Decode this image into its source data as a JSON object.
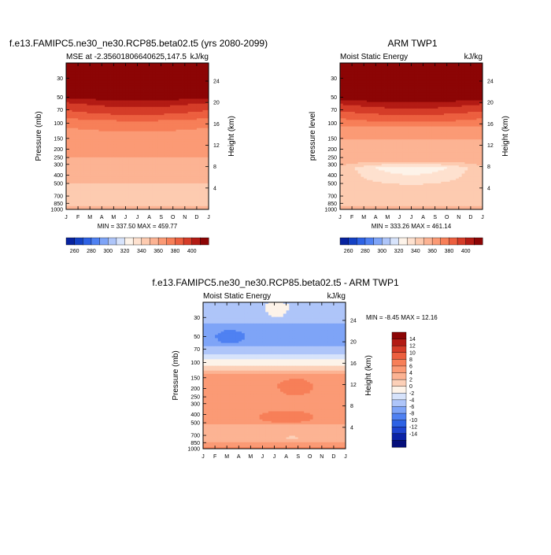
{
  "page": {
    "title_left": "f.e13.FAMIPC5.ne30_ne30.RCP85.beta02.t5 (yrs 2080-2099)",
    "title_right": "ARM TWP1",
    "title_diff": "f.e13.FAMIPC5.ne30_ne30.RCP85.beta02.t5 - ARM TWP1"
  },
  "chart_data": [
    {
      "id": "model",
      "type": "heatmap",
      "title": "f.e13.FAMIPC5.ne30_ne30.RCP85.beta02.t5 (yrs 2080-2099)",
      "subtitle_left": "MSE at -2.35601806640625,147.5",
      "subtitle_right": "kJ/kg",
      "xlabel": "",
      "ylabel": "Pressure (mb)",
      "y2label": "Height (km)",
      "x_ticks": [
        "J",
        "F",
        "M",
        "A",
        "M",
        "J",
        "J",
        "A",
        "S",
        "O",
        "N",
        "D",
        "J"
      ],
      "pressure_ticks": [
        30,
        50,
        70,
        100,
        150,
        200,
        250,
        300,
        400,
        500,
        700,
        850,
        1000
      ],
      "height_ticks": [
        4,
        8,
        12,
        16,
        20,
        24
      ],
      "ylim": [
        1000,
        20
      ],
      "stats": "MIN = 337.50 MAX = 459.77",
      "min": 337.5,
      "max": 459.77,
      "levels": [
        {
          "p": 20,
          "v": 460
        },
        {
          "p": 40,
          "v": 450
        },
        {
          "p": 48,
          "v": 412,
          "wave": 3
        },
        {
          "p": 55,
          "v": 392,
          "wave": 6
        },
        {
          "p": 68,
          "v": 382,
          "wave": 6
        },
        {
          "p": 85,
          "v": 372,
          "wave": 5
        },
        {
          "p": 100,
          "v": 362,
          "wave": 4
        },
        {
          "p": 150,
          "v": 355
        },
        {
          "p": 240,
          "v": 352
        },
        {
          "p": 270,
          "v": 341
        },
        {
          "p": 500,
          "v": 340
        },
        {
          "p": 600,
          "v": 339
        },
        {
          "p": 900,
          "v": 339
        },
        {
          "p": 930,
          "v": 343
        },
        {
          "p": 1000,
          "v": 346
        }
      ],
      "features": [
        {
          "type": "blob",
          "month": 7.8,
          "p": 665,
          "month_width": 2.2,
          "p_top": 640,
          "p_bottom": 700,
          "v": 337.5
        }
      ]
    },
    {
      "id": "obs",
      "type": "heatmap",
      "title": "ARM TWP1",
      "subtitle_left": "Moist Static Energy",
      "subtitle_right": "kJ/kg",
      "ylabel": "pressure level",
      "y2label": "Height (km)",
      "x_ticks": [
        "J",
        "F",
        "M",
        "A",
        "M",
        "J",
        "J",
        "A",
        "S",
        "O",
        "N",
        "D",
        "J"
      ],
      "pressure_ticks": [
        30,
        50,
        70,
        100,
        150,
        200,
        250,
        300,
        400,
        500,
        700,
        850,
        1000
      ],
      "height_ticks": [
        4,
        8,
        12,
        16,
        20,
        24
      ],
      "ylim": [
        1000,
        20
      ],
      "stats": "MIN = 333.26 MAX = 461.14",
      "min": 333.26,
      "max": 461.14,
      "levels": [
        {
          "p": 20,
          "v": 461
        },
        {
          "p": 42,
          "v": 450
        },
        {
          "p": 50,
          "v": 410,
          "wave": 3
        },
        {
          "p": 58,
          "v": 392,
          "wave": 6
        },
        {
          "p": 70,
          "v": 382,
          "wave": 6
        },
        {
          "p": 85,
          "v": 372,
          "wave": 5
        },
        {
          "p": 105,
          "v": 362,
          "wave": 4
        },
        {
          "p": 120,
          "v": 352
        },
        {
          "p": 270,
          "v": 346
        },
        {
          "p": 330,
          "v": 338,
          "wave": -25
        },
        {
          "p": 600,
          "v": 336
        },
        {
          "p": 850,
          "v": 336
        },
        {
          "p": 920,
          "v": 341
        },
        {
          "p": 1000,
          "v": 343
        }
      ],
      "features": []
    },
    {
      "id": "diff",
      "type": "heatmap",
      "title": "f.e13.FAMIPC5.ne30_ne30.RCP85.beta02.t5 - ARM TWP1",
      "subtitle_left": "Moist Static Energy",
      "subtitle_right": "kJ/kg",
      "ylabel": "Pressure (mb)",
      "y2label": "Height (km)",
      "x_ticks": [
        "J",
        "F",
        "M",
        "A",
        "M",
        "J",
        "J",
        "A",
        "S",
        "O",
        "N",
        "D",
        "J"
      ],
      "pressure_ticks": [
        30,
        50,
        70,
        100,
        150,
        200,
        250,
        300,
        400,
        500,
        700,
        850,
        1000
      ],
      "height_ticks": [
        4,
        8,
        12,
        16,
        20,
        24
      ],
      "ylim": [
        1000,
        20
      ],
      "stats": "MIN =  -8.45 MAX =  12.16",
      "min": -8.45,
      "max": 12.16,
      "levels": [
        {
          "p": 20,
          "v": -3
        },
        {
          "p": 35,
          "v": -4
        },
        {
          "p": 50,
          "v": -5
        },
        {
          "p": 65,
          "v": -4
        },
        {
          "p": 80,
          "v": -2
        },
        {
          "p": 100,
          "v": 1
        },
        {
          "p": 120,
          "v": 3
        },
        {
          "p": 140,
          "v": 7
        },
        {
          "p": 300,
          "v": 7
        },
        {
          "p": 350,
          "v": 8
        },
        {
          "p": 500,
          "v": 7
        },
        {
          "p": 600,
          "v": 4
        },
        {
          "p": 800,
          "v": 5
        },
        {
          "p": 950,
          "v": 8
        },
        {
          "p": 1000,
          "v": 9
        }
      ],
      "features": [
        {
          "type": "blob",
          "month": 2.3,
          "p": 50,
          "month_width": 2.4,
          "p_top": 42,
          "p_bottom": 60,
          "v": -8
        },
        {
          "type": "blob",
          "month": 6.2,
          "p": 22,
          "month_width": 2.0,
          "p_top": 20,
          "p_bottom": 30,
          "v": 1
        },
        {
          "type": "blob",
          "month": 7.8,
          "p": 190,
          "month_width": 3.0,
          "p_top": 155,
          "p_bottom": 240,
          "v": 9
        },
        {
          "type": "blob",
          "month": 7.0,
          "p": 430,
          "month_width": 4.5,
          "p_top": 360,
          "p_bottom": 500,
          "v": 9
        },
        {
          "type": "blob",
          "month": 7.5,
          "p": 740,
          "month_width": 1.2,
          "p_top": 720,
          "p_bottom": 760,
          "v": 2
        }
      ]
    }
  ],
  "colorbar_abs": {
    "labels": [
      "260",
      "280",
      "300",
      "320",
      "340",
      "360",
      "380",
      "400"
    ],
    "bounds": [
      250,
      260,
      270,
      280,
      290,
      300,
      310,
      320,
      330,
      340,
      350,
      360,
      370,
      380,
      390,
      400,
      410
    ],
    "colors": [
      "#07229f",
      "#1441c4",
      "#2e62e4",
      "#4f81f2",
      "#7ea4f7",
      "#aec5f9",
      "#d7e3fb",
      "#fdf3e9",
      "#fee1cf",
      "#fdcbb0",
      "#fcb393",
      "#fb9a75",
      "#f77f58",
      "#ec5f3f",
      "#d53c28",
      "#b31b14",
      "#8c0505"
    ]
  },
  "colorbar_diff": {
    "labels": [
      "14",
      "12",
      "10",
      "8",
      "6",
      "4",
      "2",
      "0",
      "-2",
      "-4",
      "-6",
      "-8",
      "-10",
      "-12",
      "-14"
    ],
    "bounds": [
      -14,
      -12,
      -10,
      -8,
      -6,
      -4,
      -2,
      0,
      2,
      4,
      6,
      8,
      10,
      12,
      14
    ],
    "colors": [
      "#050f7a",
      "#0a22a6",
      "#1e44d0",
      "#2e62e4",
      "#4f81f2",
      "#7ea4f7",
      "#aec5f9",
      "#d7e3fb",
      "#fdf3e9",
      "#fcd0b8",
      "#fcb393",
      "#fb9a75",
      "#f77f58",
      "#ec5f3f",
      "#d53c28",
      "#b31b14",
      "#8c0505"
    ]
  }
}
